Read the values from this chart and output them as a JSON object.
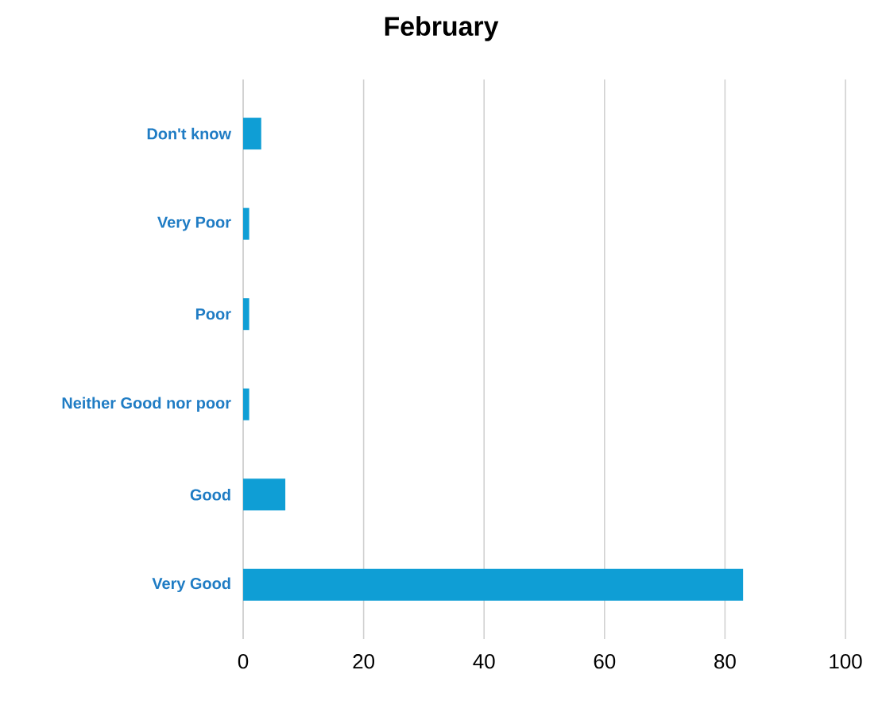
{
  "chart_data": {
    "type": "bar",
    "orientation": "horizontal",
    "title": "February",
    "categories": [
      "Don't know",
      "Very Poor",
      "Poor",
      "Neither Good nor poor",
      "Good",
      "Very Good"
    ],
    "values": [
      3,
      1,
      1,
      1,
      7,
      83
    ],
    "color": "#0f9ed5",
    "xlim": [
      0,
      100
    ],
    "xticks": [
      0,
      20,
      40,
      60,
      80,
      100
    ],
    "grid": "x"
  }
}
